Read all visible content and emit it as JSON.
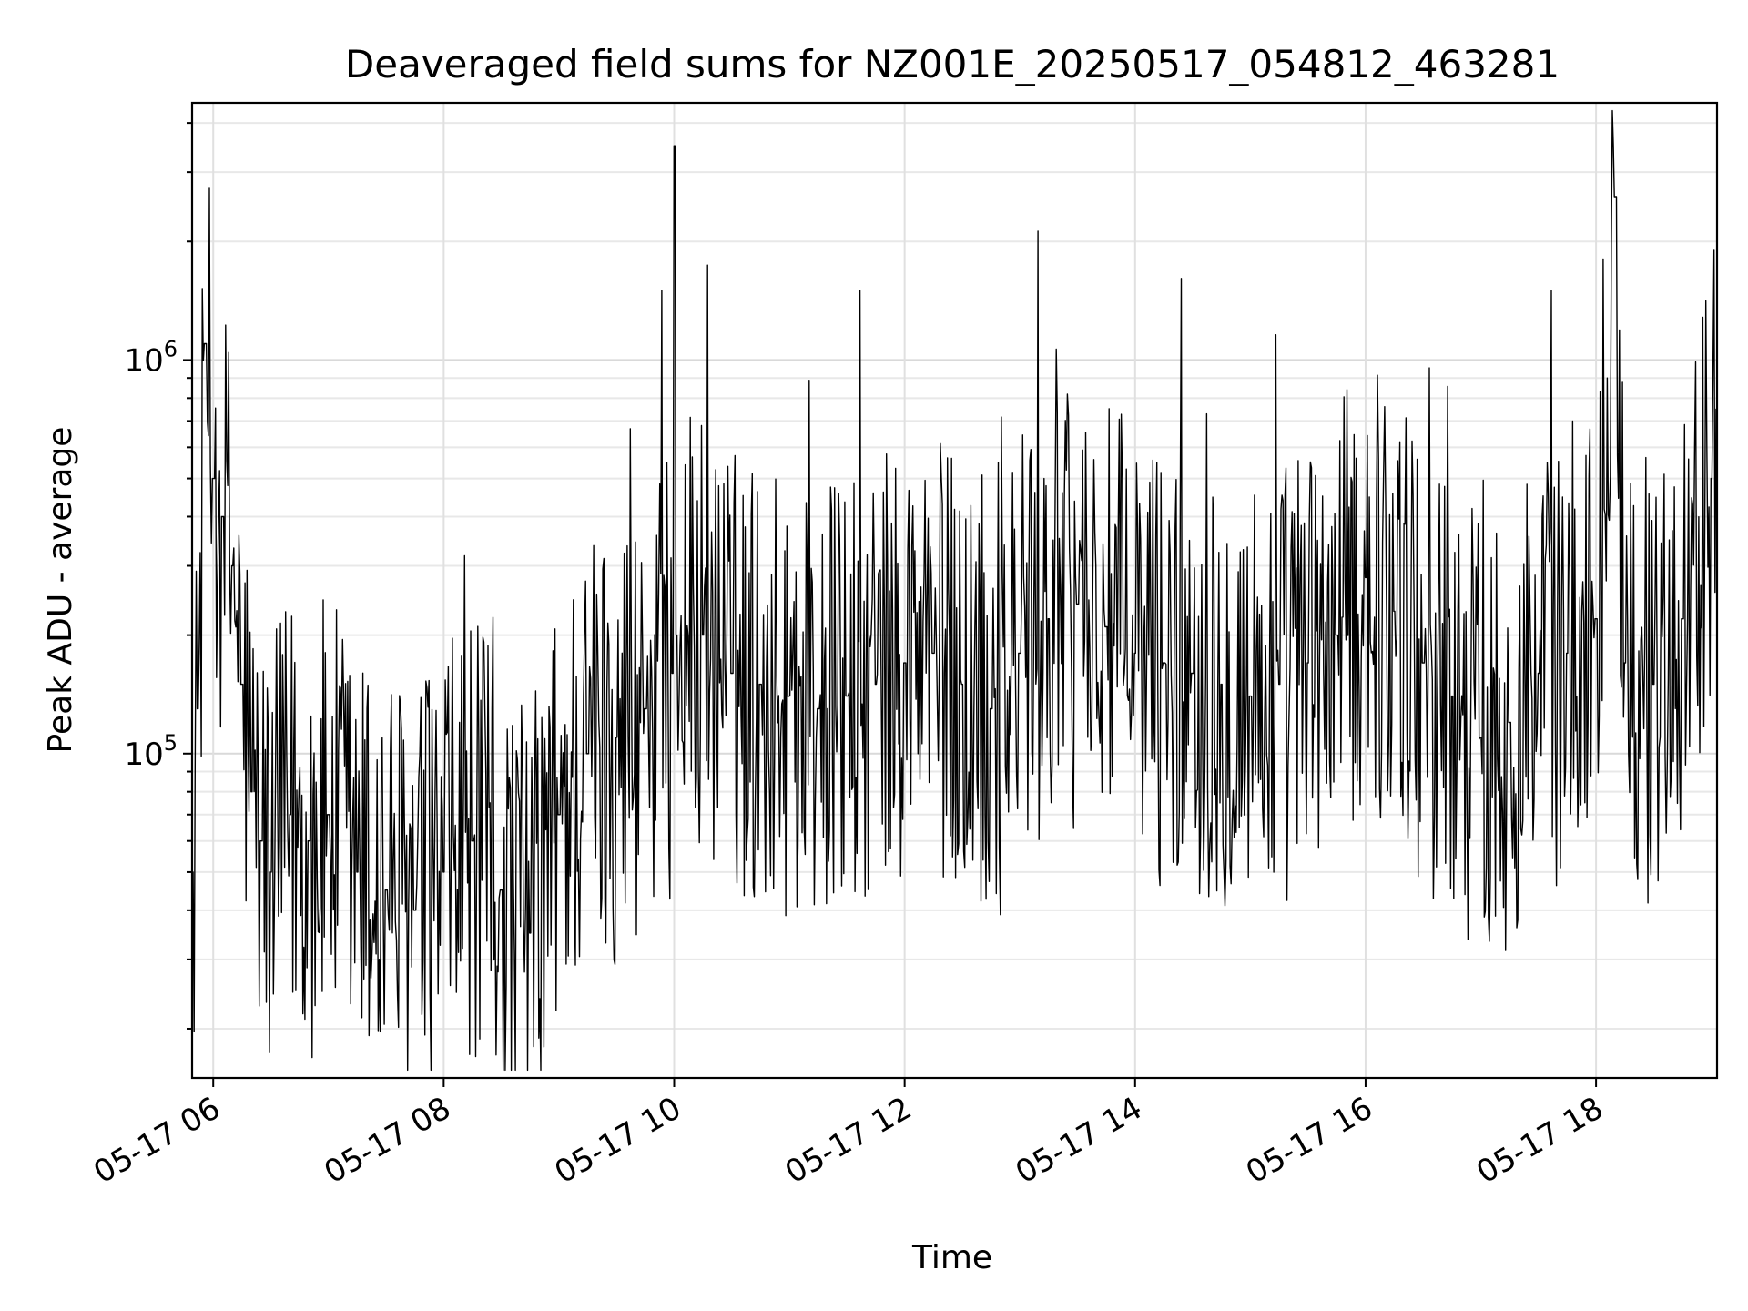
{
  "chart_data": {
    "type": "line",
    "title": "Deaveraged field sums for NZ001E_20250517_054812_463281",
    "xlabel": "Time",
    "ylabel": "Peak ADU - average",
    "y_scale": "log",
    "ylim": [
      15000,
      4500000
    ],
    "xlim": [
      "2025-05-17 05:49",
      "2025-05-17 19:03"
    ],
    "grid": true,
    "x_tick_labels": [
      "05-17 06",
      "05-17 08",
      "05-17 10",
      "05-17 12",
      "05-17 14",
      "05-17 16",
      "05-17 18"
    ],
    "x_tick_values": [
      "2025-05-17 06:00",
      "2025-05-17 08:00",
      "2025-05-17 10:00",
      "2025-05-17 12:00",
      "2025-05-17 14:00",
      "2025-05-17 16:00",
      "2025-05-17 18:00"
    ],
    "y_ticks": [
      {
        "base": "10",
        "exp": "5",
        "value": 100000
      },
      {
        "base": "10",
        "exp": "6",
        "value": 1000000
      }
    ],
    "series": [
      {
        "color": "#000000",
        "x": [
          "2025-05-17 05:49",
          "2025-05-17 05:52",
          "2025-05-17 05:56",
          "2025-05-17 06:00",
          "2025-05-17 06:05",
          "2025-05-17 06:10",
          "2025-05-17 06:15",
          "2025-05-17 06:20",
          "2025-05-17 06:25",
          "2025-05-17 06:30",
          "2025-05-17 06:40",
          "2025-05-17 06:50",
          "2025-05-17 07:00",
          "2025-05-17 07:15",
          "2025-05-17 07:30",
          "2025-05-17 07:45",
          "2025-05-17 08:00",
          "2025-05-17 08:15",
          "2025-05-17 08:30",
          "2025-05-17 08:45",
          "2025-05-17 09:00",
          "2025-05-17 09:15",
          "2025-05-17 09:30",
          "2025-05-17 09:45",
          "2025-05-17 09:59",
          "2025-05-17 10:00",
          "2025-05-17 10:01",
          "2025-05-17 10:15",
          "2025-05-17 10:30",
          "2025-05-17 10:45",
          "2025-05-17 11:00",
          "2025-05-17 11:15",
          "2025-05-17 11:30",
          "2025-05-17 11:45",
          "2025-05-17 12:00",
          "2025-05-17 12:15",
          "2025-05-17 12:30",
          "2025-05-17 12:45",
          "2025-05-17 13:00",
          "2025-05-17 13:15",
          "2025-05-17 13:30",
          "2025-05-17 13:45",
          "2025-05-17 14:00",
          "2025-05-17 14:15",
          "2025-05-17 14:30",
          "2025-05-17 14:45",
          "2025-05-17 15:00",
          "2025-05-17 15:15",
          "2025-05-17 15:30",
          "2025-05-17 15:45",
          "2025-05-17 16:00",
          "2025-05-17 16:15",
          "2025-05-17 16:30",
          "2025-05-17 16:45",
          "2025-05-17 17:00",
          "2025-05-17 17:15",
          "2025-05-17 17:30",
          "2025-05-17 17:45",
          "2025-05-17 18:00",
          "2025-05-17 18:10",
          "2025-05-17 18:15",
          "2025-05-17 18:30",
          "2025-05-17 18:45",
          "2025-05-17 19:00",
          "2025-05-17 19:03"
        ],
        "y": [
          50000,
          130000,
          1100000,
          500000,
          400000,
          300000,
          150000,
          80000,
          60000,
          50000,
          70000,
          60000,
          70000,
          50000,
          45000,
          40000,
          50000,
          60000,
          45000,
          35000,
          70000,
          100000,
          110000,
          130000,
          160000,
          3500000,
          200000,
          200000,
          160000,
          150000,
          140000,
          130000,
          140000,
          150000,
          170000,
          180000,
          150000,
          130000,
          180000,
          220000,
          240000,
          210000,
          180000,
          170000,
          160000,
          150000,
          140000,
          150000,
          170000,
          200000,
          280000,
          230000,
          170000,
          140000,
          110000,
          120000,
          160000,
          180000,
          220000,
          2600000,
          170000,
          150000,
          220000,
          500000,
          750000
        ]
      }
    ]
  }
}
